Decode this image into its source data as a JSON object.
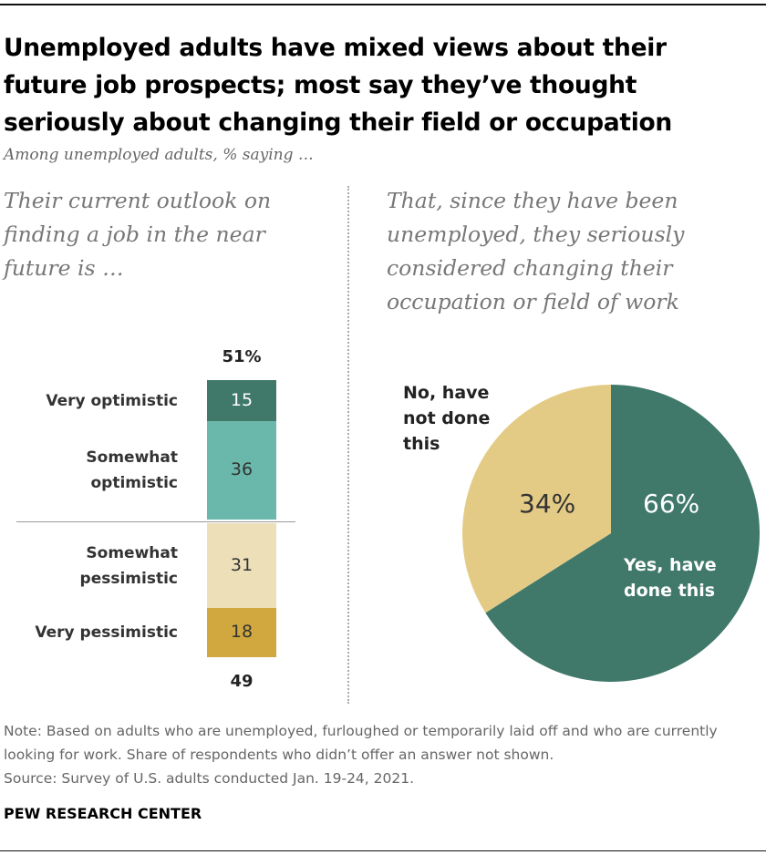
{
  "title": "Unemployed adults have mixed views about their future job prospects; most say they’ve thought seriously about changing their field or occupation",
  "subtitle": "Among unemployed adults, % saying …",
  "left_heading": "Their current outlook on finding a job in the near future is …",
  "right_heading": "That, since they have been unemployed, they seriously considered changing their occupation or field of work",
  "note": "Note: Based on adults who are unemployed, furloughed or temporarily laid off and who are currently looking for work. Share of respondents who didn’t offer an answer not shown.",
  "source": "Source: Survey of U.S. adults conducted Jan. 19-24, 2021.",
  "brand": "PEW RESEARCH CENTER",
  "colors": {
    "very_optimistic": "#40796a",
    "somewhat_optimistic": "#6ab8ab",
    "somewhat_pessimistic": "#ede0b8",
    "very_pessimistic": "#d1a840",
    "pie_yes": "#40796a",
    "pie_no": "#e4cb85"
  },
  "chart_data": [
    {
      "type": "bar",
      "stacked": true,
      "categories": [
        "Very optimistic",
        "Somewhat optimistic",
        "Somewhat pessimistic",
        "Very pessimistic"
      ],
      "values": [
        15,
        36,
        31,
        18
      ],
      "totals": {
        "optimistic": "51%",
        "pessimistic": "49"
      },
      "category_label_lines": [
        [
          "Very optimistic"
        ],
        [
          "Somewhat",
          "optimistic"
        ],
        [
          "Somewhat",
          "pessimistic"
        ],
        [
          "Very pessimistic"
        ]
      ]
    },
    {
      "type": "pie",
      "slices": [
        {
          "label": "Yes, have done this",
          "label_lines": [
            "Yes, have",
            "done this"
          ],
          "value": 66,
          "display": "66%"
        },
        {
          "label": "No, have not done this",
          "label_lines": [
            "No, have",
            "not done",
            "this"
          ],
          "value": 34,
          "display": "34%"
        }
      ]
    }
  ]
}
